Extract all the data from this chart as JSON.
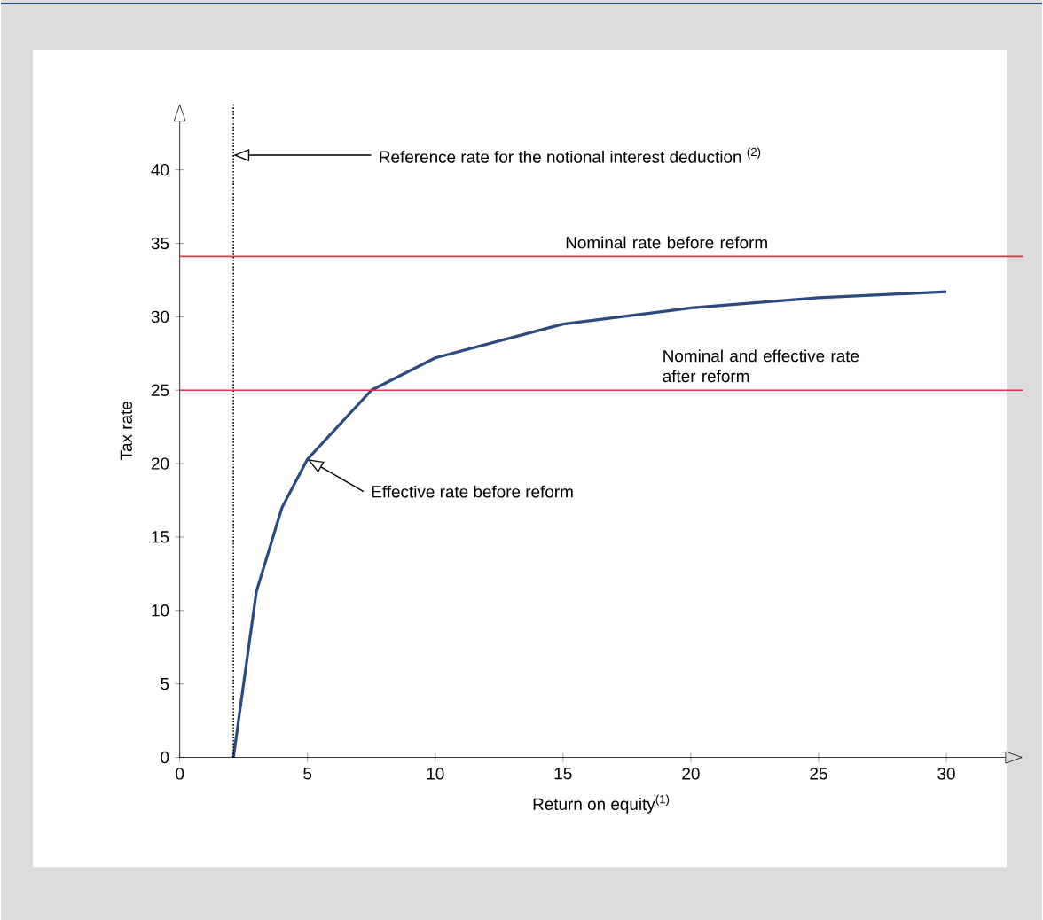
{
  "chart_data": {
    "type": "line",
    "xlabel": "Return on equity$^{(1)}$",
    "ylabel": "Tax rate",
    "xlim": [
      0,
      33
    ],
    "ylim": [
      0,
      44.5
    ],
    "xticks": [
      0,
      5,
      10,
      15,
      20,
      25,
      30
    ],
    "yticks": [
      0,
      5,
      10,
      15,
      20,
      25,
      30,
      35,
      40
    ],
    "x": [
      2.1,
      3,
      4,
      5,
      7.5,
      10,
      15,
      20,
      25,
      30
    ],
    "series": [
      {
        "color": "#2b4a80",
        "values": [
          0,
          11.3,
          17,
          20.3,
          25,
          27.2,
          29.5,
          30.6,
          31.3,
          31.7
        ]
      }
    ],
    "line_style": "solid",
    "marker": "none",
    "ref_lines": [
      {
        "axis": "x",
        "value": 2.1,
        "label": "Reference rate for the notional interest deduction $^{(2)}$",
        "color": "#000000",
        "line_style": "dotted"
      },
      {
        "axis": "y",
        "value": 34.1,
        "label": "Nominal rate before reform",
        "color": "#d9344a",
        "line_style": "solid"
      },
      {
        "axis": "y",
        "value": 25,
        "label": "Nominal and effective rate after reform",
        "color": "#d9344a",
        "line_style": "solid"
      }
    ],
    "annotations": [
      {
        "text": "Effective rate before reform",
        "x": 5,
        "y": 20.3
      }
    ]
  }
}
